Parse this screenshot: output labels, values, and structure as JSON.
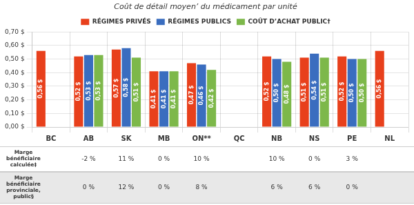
{
  "chart_data": {
    "type": "bar",
    "title": "Coût de détail moyen’ du médicament par unité",
    "categories": [
      "BC",
      "AB",
      "SK",
      "MB",
      "ON**",
      "QC",
      "NB",
      "NS",
      "PE",
      "NL"
    ],
    "series": [
      {
        "name": "RÉGIMES PRIVÉS",
        "color": "#E8401C",
        "values": [
          0.56,
          0.52,
          0.57,
          0.41,
          0.47,
          null,
          0.52,
          0.51,
          0.52,
          0.56
        ],
        "value_labels": [
          "0,56 $",
          "0,52 $",
          "0,57 $",
          "0,41 $",
          "0,47 $",
          null,
          "0,52 $",
          "0,51 $",
          "0,52 $",
          "0,56 $"
        ]
      },
      {
        "name": "RÉGIMES PUBLICS",
        "color": "#3A6DBF",
        "values": [
          null,
          0.53,
          0.58,
          0.41,
          0.46,
          null,
          0.5,
          0.54,
          0.5,
          null
        ],
        "value_labels": [
          null,
          "0,53 $",
          "0,58 $",
          "0,41 $",
          "0,46 $",
          null,
          "0,50 $",
          "0,54 $",
          "0,50 $",
          null
        ]
      },
      {
        "name": "COÛT D’ACHAT PUBLIC†",
        "color": "#7DB84A",
        "values": [
          null,
          0.53,
          0.51,
          0.41,
          0.42,
          null,
          0.48,
          0.51,
          0.5,
          null
        ],
        "value_labels": [
          null,
          "0,53 $",
          "0,51 $",
          "0,41 $",
          "0,42 $",
          null,
          "0,48 $",
          "0,51 $",
          "0,50 $",
          null
        ]
      }
    ],
    "ylim": [
      0,
      0.7
    ],
    "yticks": [
      {
        "value": 0.0,
        "label": "0,00 $"
      },
      {
        "value": 0.1,
        "label": "0,10 $"
      },
      {
        "value": 0.2,
        "label": "0,20 $"
      },
      {
        "value": 0.3,
        "label": "0,30 $"
      },
      {
        "value": 0.4,
        "label": "0,40 $"
      },
      {
        "value": 0.5,
        "label": "0,50 $"
      },
      {
        "value": 0.6,
        "label": "0,60 $"
      },
      {
        "value": 0.7,
        "label": "0,70 $"
      }
    ],
    "grid": true,
    "legend": "top",
    "data_labels": true,
    "annotations": [
      {
        "label": "Marge\nbénéficiaire\ncalculée‡",
        "values": [
          null,
          "-2 %",
          "11 %",
          "0 %",
          "10 %",
          null,
          "10 %",
          "0 %",
          "3 %",
          null
        ]
      },
      {
        "label": "Marge\nbénéficiaire\nprovinciale,\npublic§",
        "values": [
          null,
          "0 %",
          "12 %",
          "0 %",
          "8 %",
          null,
          "6 %",
          "6 %",
          "0 %",
          null
        ]
      }
    ]
  }
}
